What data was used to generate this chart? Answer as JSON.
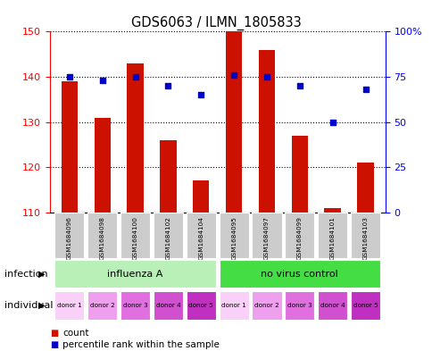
{
  "title": "GDS6063 / ILMN_1805833",
  "samples": [
    "GSM1684096",
    "GSM1684098",
    "GSM1684100",
    "GSM1684102",
    "GSM1684104",
    "GSM1684095",
    "GSM1684097",
    "GSM1684099",
    "GSM1684101",
    "GSM1684103"
  ],
  "counts": [
    139,
    131,
    143,
    126,
    117,
    150,
    146,
    127,
    111,
    121
  ],
  "percentiles": [
    75,
    73,
    75,
    70,
    65,
    76,
    75,
    70,
    50,
    68
  ],
  "ylim_left": [
    110,
    150
  ],
  "ylim_right": [
    0,
    100
  ],
  "yticks_left": [
    110,
    120,
    130,
    140,
    150
  ],
  "yticks_right": [
    0,
    25,
    50,
    75,
    100
  ],
  "infection_groups": [
    {
      "label": "influenza A",
      "start": 0,
      "end": 5,
      "color": "#b8f0b8"
    },
    {
      "label": "no virus control",
      "start": 5,
      "end": 10,
      "color": "#44dd44"
    }
  ],
  "individual_labels": [
    "donor 1",
    "donor 2",
    "donor 3",
    "donor 4",
    "donor 5",
    "donor 1",
    "donor 2",
    "donor 3",
    "donor 4",
    "donor 5"
  ],
  "individual_colors": [
    "#f8d0f8",
    "#eea0ee",
    "#e070e0",
    "#d050d0",
    "#c030c0",
    "#f8d0f8",
    "#eea0ee",
    "#e070e0",
    "#d050d0",
    "#c030c0"
  ],
  "bar_color": "#cc1100",
  "dot_color": "#0000cc",
  "sample_bg_color": "#cccccc",
  "infection_label": "infection",
  "individual_label": "individual",
  "legend_count": "count",
  "legend_percentile": "percentile rank within the sample"
}
